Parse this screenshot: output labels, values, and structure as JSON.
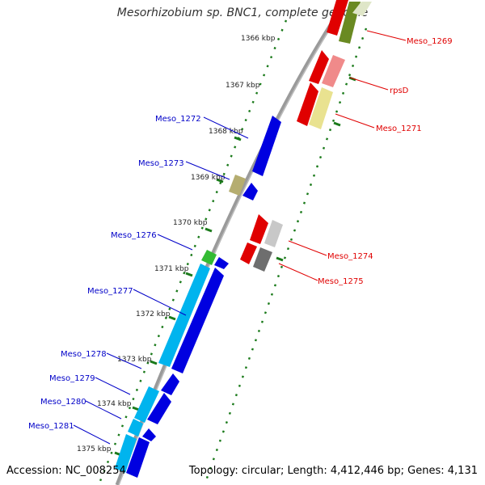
{
  "title": "Mesorhizobium sp. BNC1, complete genome",
  "accession": "Accession: NC_008254",
  "summary": "Topology: circular; Length: 4,412,446 bp; Genes: 4,131",
  "ticks": [
    "1366 kbp",
    "1367 kbp",
    "1368 kbp",
    "1369 kbp",
    "1370 kbp",
    "1371 kbp",
    "1372 kbp",
    "1373 kbp",
    "1374 kbp",
    "1375 kbp"
  ],
  "genes": [
    {
      "name": "Meso_1269",
      "strand": "+",
      "color": "#6a8a22"
    },
    {
      "name": "rpsD",
      "strand": "+",
      "color": "#f08a8a"
    },
    {
      "name": "Meso_1271",
      "strand": "+",
      "color": "#e9e290"
    },
    {
      "name": "Meso_1272",
      "strand": "-",
      "color": "#0000e0"
    },
    {
      "name": "Meso_1273",
      "strand": "-",
      "color": "#0000e0"
    },
    {
      "name": "Meso_1274",
      "strand": "+",
      "color": "#c8c8c8"
    },
    {
      "name": "Meso_1275",
      "strand": "+",
      "color": "#6e6e6e"
    },
    {
      "name": "Meso_1276",
      "strand": "-",
      "color": "#33bb33"
    },
    {
      "name": "Meso_1277",
      "strand": "-",
      "color": "#00b4ee"
    },
    {
      "name": "Meso_1278",
      "strand": "-",
      "color": "#0000e0"
    },
    {
      "name": "Meso_1279",
      "strand": "-",
      "color": "#00b4ee"
    },
    {
      "name": "Meso_1280",
      "strand": "-",
      "color": "#0000e0"
    },
    {
      "name": "Meso_1281",
      "strand": "-",
      "color": "#00b4ee"
    }
  ],
  "colors": {
    "forward_label": "#e00000",
    "reverse_label": "#0000c8",
    "axis": "#888888",
    "tick_dots": "#1a7a1a"
  }
}
